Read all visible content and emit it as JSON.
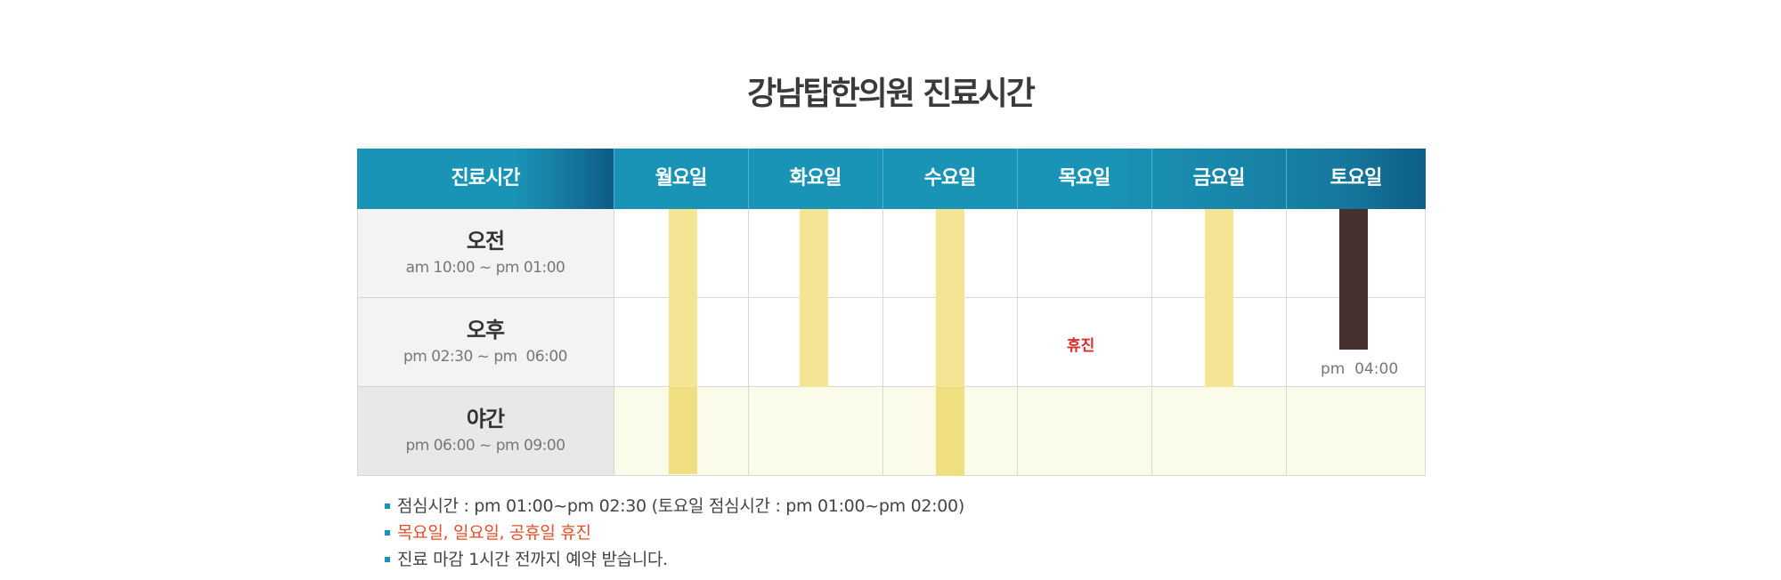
{
  "title": "강남탑한의원 진료시간",
  "table": {
    "header": {
      "first": "진료시간",
      "days": [
        "월요일",
        "화요일",
        "수요일",
        "목요일",
        "금요일",
        "토요일"
      ]
    },
    "rows": [
      {
        "name": "오전",
        "time": "am 10:00 ~ pm 01:00"
      },
      {
        "name": "오후",
        "time": "pm 02:30 ~ pm  06:00"
      },
      {
        "name": "야간",
        "time": "pm 06:00 ~ pm 09:00"
      }
    ],
    "thursday_closed": "휴진",
    "saturday_end": "pm  04:00"
  },
  "notes": [
    "점심시간 : pm 01:00~pm 02:30 (토요일 점심시간 : pm 01:00~pm 02:00)",
    "목요일, 일요일, 공휴일 휴진",
    "진료 마감 1시간 전까지 예약 받습니다."
  ],
  "colors": {
    "header": "#1a94b6",
    "bar_regular": "#f4e594",
    "bar_saturday": "#47312f",
    "night_row": "#fafce9",
    "closed_text": "#e02a2a",
    "holiday_note": "#e2502b"
  }
}
